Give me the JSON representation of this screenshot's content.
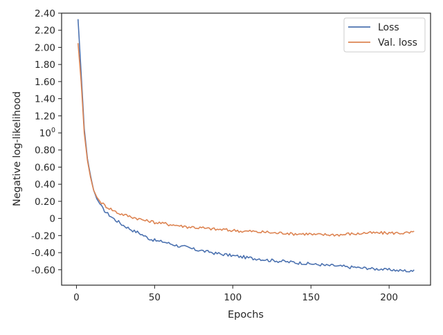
{
  "chart_data": {
    "type": "line",
    "title": "",
    "xlabel": "Epochs",
    "ylabel": "Negative log-likelihood",
    "xlim": [
      -9.5,
      226.5
    ],
    "ylim": [
      -0.78,
      2.4
    ],
    "x_ticks": [
      {
        "value": 0,
        "label": "0"
      },
      {
        "value": 50,
        "label": "50"
      },
      {
        "value": 100,
        "label": "100"
      },
      {
        "value": 150,
        "label": "150"
      },
      {
        "value": 200,
        "label": "200"
      }
    ],
    "y_ticks": [
      {
        "value": 2.4,
        "label": "2.40"
      },
      {
        "value": 2.2,
        "label": "2.20"
      },
      {
        "value": 2.0,
        "label": "2.00"
      },
      {
        "value": 1.8,
        "label": "1.80"
      },
      {
        "value": 1.6,
        "label": "1.60"
      },
      {
        "value": 1.4,
        "label": "1.40"
      },
      {
        "value": 1.2,
        "label": "1.20"
      },
      {
        "value": 1.0,
        "label": "10",
        "sup": "0"
      },
      {
        "value": 0.8,
        "label": "0.80"
      },
      {
        "value": 0.6,
        "label": "0.60"
      },
      {
        "value": 0.4,
        "label": "0.40"
      },
      {
        "value": 0.2,
        "label": "0.20"
      },
      {
        "value": 0.0,
        "label": "0"
      },
      {
        "value": -0.2,
        "label": "-0.20"
      },
      {
        "value": -0.4,
        "label": "-0.40"
      },
      {
        "value": -0.6,
        "label": "-0.60"
      }
    ],
    "y_ticks_nonuniform": true,
    "grid": false,
    "legend": "top-right",
    "series": [
      {
        "name": "Loss",
        "color": "#4c72b0",
        "points": [
          [
            1,
            2.33
          ],
          [
            3,
            1.7
          ],
          [
            5,
            1.05
          ],
          [
            7,
            0.7
          ],
          [
            9,
            0.5
          ],
          [
            11,
            0.33
          ],
          [
            13,
            0.23
          ],
          [
            15,
            0.17
          ],
          [
            17,
            0.11
          ],
          [
            19,
            0.07
          ],
          [
            21,
            0.04
          ],
          [
            23,
            0.01
          ],
          [
            25,
            -0.02
          ],
          [
            27,
            -0.04
          ],
          [
            29,
            -0.07
          ],
          [
            31,
            -0.09
          ],
          [
            33,
            -0.11
          ],
          [
            35,
            -0.13
          ],
          [
            37,
            -0.15
          ],
          [
            39,
            -0.16
          ],
          [
            41,
            -0.18
          ],
          [
            43,
            -0.2
          ],
          [
            45,
            -0.22
          ],
          [
            47,
            -0.24
          ],
          [
            49,
            -0.25
          ],
          [
            51,
            -0.26
          ],
          [
            53,
            -0.27
          ],
          [
            55,
            -0.27
          ],
          [
            57,
            -0.28
          ],
          [
            59,
            -0.29
          ],
          [
            61,
            -0.3
          ],
          [
            63,
            -0.31
          ],
          [
            65,
            -0.32
          ],
          [
            67,
            -0.33
          ],
          [
            69,
            -0.33
          ],
          [
            71,
            -0.34
          ],
          [
            73,
            -0.35
          ],
          [
            75,
            -0.36
          ],
          [
            77,
            -0.37
          ],
          [
            79,
            -0.37
          ],
          [
            81,
            -0.38
          ],
          [
            83,
            -0.39
          ],
          [
            85,
            -0.39
          ],
          [
            87,
            -0.4
          ],
          [
            89,
            -0.41
          ],
          [
            91,
            -0.41
          ],
          [
            93,
            -0.42
          ],
          [
            95,
            -0.42
          ],
          [
            97,
            -0.43
          ],
          [
            99,
            -0.43
          ],
          [
            101,
            -0.44
          ],
          [
            103,
            -0.44
          ],
          [
            105,
            -0.45
          ],
          [
            107,
            -0.45
          ],
          [
            109,
            -0.46
          ],
          [
            111,
            -0.46
          ],
          [
            113,
            -0.47
          ],
          [
            115,
            -0.47
          ],
          [
            117,
            -0.47
          ],
          [
            119,
            -0.48
          ],
          [
            121,
            -0.48
          ],
          [
            123,
            -0.49
          ],
          [
            125,
            -0.49
          ],
          [
            127,
            -0.49
          ],
          [
            129,
            -0.5
          ],
          [
            131,
            -0.5
          ],
          [
            133,
            -0.5
          ],
          [
            135,
            -0.51
          ],
          [
            137,
            -0.51
          ],
          [
            139,
            -0.51
          ],
          [
            141,
            -0.52
          ],
          [
            143,
            -0.52
          ],
          [
            145,
            -0.52
          ],
          [
            147,
            -0.53
          ],
          [
            149,
            -0.53
          ],
          [
            151,
            -0.53
          ],
          [
            153,
            -0.54
          ],
          [
            155,
            -0.54
          ],
          [
            157,
            -0.54
          ],
          [
            159,
            -0.55
          ],
          [
            161,
            -0.55
          ],
          [
            163,
            -0.55
          ],
          [
            165,
            -0.55
          ],
          [
            167,
            -0.56
          ],
          [
            169,
            -0.56
          ],
          [
            171,
            -0.56
          ],
          [
            173,
            -0.57
          ],
          [
            175,
            -0.57
          ],
          [
            177,
            -0.57
          ],
          [
            179,
            -0.57
          ],
          [
            181,
            -0.58
          ],
          [
            183,
            -0.58
          ],
          [
            185,
            -0.58
          ],
          [
            187,
            -0.58
          ],
          [
            189,
            -0.59
          ],
          [
            191,
            -0.59
          ],
          [
            193,
            -0.59
          ],
          [
            195,
            -0.59
          ],
          [
            197,
            -0.6
          ],
          [
            199,
            -0.6
          ],
          [
            201,
            -0.6
          ],
          [
            203,
            -0.6
          ],
          [
            205,
            -0.61
          ],
          [
            207,
            -0.61
          ],
          [
            209,
            -0.61
          ],
          [
            211,
            -0.61
          ],
          [
            213,
            -0.62
          ],
          [
            215,
            -0.62
          ],
          [
            216,
            -0.6
          ]
        ]
      },
      {
        "name": "Val. loss",
        "color": "#dd8452",
        "points": [
          [
            1,
            2.05
          ],
          [
            3,
            1.6
          ],
          [
            5,
            1.0
          ],
          [
            7,
            0.68
          ],
          [
            9,
            0.48
          ],
          [
            11,
            0.33
          ],
          [
            13,
            0.25
          ],
          [
            15,
            0.2
          ],
          [
            17,
            0.17
          ],
          [
            19,
            0.14
          ],
          [
            21,
            0.12
          ],
          [
            23,
            0.1
          ],
          [
            25,
            0.08
          ],
          [
            27,
            0.06
          ],
          [
            29,
            0.05
          ],
          [
            31,
            0.04
          ],
          [
            33,
            0.03
          ],
          [
            35,
            0.02
          ],
          [
            37,
            0.01
          ],
          [
            39,
            0.0
          ],
          [
            41,
            -0.01
          ],
          [
            43,
            -0.02
          ],
          [
            45,
            -0.03
          ],
          [
            47,
            -0.03
          ],
          [
            49,
            -0.04
          ],
          [
            51,
            -0.05
          ],
          [
            53,
            -0.05
          ],
          [
            55,
            -0.06
          ],
          [
            57,
            -0.06
          ],
          [
            59,
            -0.07
          ],
          [
            61,
            -0.07
          ],
          [
            63,
            -0.08
          ],
          [
            65,
            -0.08
          ],
          [
            67,
            -0.09
          ],
          [
            69,
            -0.09
          ],
          [
            71,
            -0.1
          ],
          [
            73,
            -0.1
          ],
          [
            75,
            -0.1
          ],
          [
            77,
            -0.11
          ],
          [
            79,
            -0.11
          ],
          [
            81,
            -0.11
          ],
          [
            83,
            -0.12
          ],
          [
            85,
            -0.12
          ],
          [
            87,
            -0.12
          ],
          [
            89,
            -0.13
          ],
          [
            91,
            -0.13
          ],
          [
            93,
            -0.13
          ],
          [
            95,
            -0.13
          ],
          [
            97,
            -0.14
          ],
          [
            99,
            -0.14
          ],
          [
            101,
            -0.14
          ],
          [
            103,
            -0.14
          ],
          [
            105,
            -0.15
          ],
          [
            107,
            -0.15
          ],
          [
            109,
            -0.15
          ],
          [
            111,
            -0.15
          ],
          [
            113,
            -0.15
          ],
          [
            115,
            -0.16
          ],
          [
            117,
            -0.16
          ],
          [
            119,
            -0.16
          ],
          [
            121,
            -0.16
          ],
          [
            123,
            -0.16
          ],
          [
            125,
            -0.17
          ],
          [
            127,
            -0.17
          ],
          [
            129,
            -0.17
          ],
          [
            131,
            -0.17
          ],
          [
            133,
            -0.17
          ],
          [
            135,
            -0.17
          ],
          [
            137,
            -0.18
          ],
          [
            139,
            -0.18
          ],
          [
            141,
            -0.18
          ],
          [
            143,
            -0.18
          ],
          [
            145,
            -0.18
          ],
          [
            147,
            -0.18
          ],
          [
            149,
            -0.18
          ],
          [
            151,
            -0.19
          ],
          [
            153,
            -0.19
          ],
          [
            155,
            -0.19
          ],
          [
            157,
            -0.19
          ],
          [
            159,
            -0.19
          ],
          [
            161,
            -0.19
          ],
          [
            163,
            -0.19
          ],
          [
            165,
            -0.19
          ],
          [
            167,
            -0.19
          ],
          [
            169,
            -0.19
          ],
          [
            171,
            -0.19
          ],
          [
            173,
            -0.18
          ],
          [
            175,
            -0.18
          ],
          [
            177,
            -0.18
          ],
          [
            179,
            -0.18
          ],
          [
            181,
            -0.18
          ],
          [
            183,
            -0.17
          ],
          [
            185,
            -0.17
          ],
          [
            187,
            -0.17
          ],
          [
            189,
            -0.17
          ],
          [
            191,
            -0.17
          ],
          [
            193,
            -0.17
          ],
          [
            195,
            -0.17
          ],
          [
            197,
            -0.17
          ],
          [
            199,
            -0.17
          ],
          [
            201,
            -0.17
          ],
          [
            203,
            -0.17
          ],
          [
            205,
            -0.17
          ],
          [
            207,
            -0.17
          ],
          [
            209,
            -0.17
          ],
          [
            211,
            -0.17
          ],
          [
            213,
            -0.17
          ],
          [
            215,
            -0.16
          ],
          [
            216,
            -0.15
          ]
        ]
      }
    ]
  }
}
